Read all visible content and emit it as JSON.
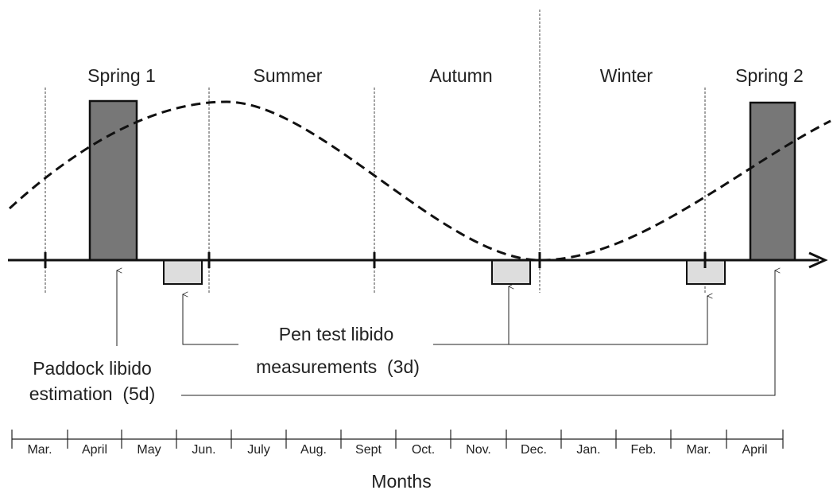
{
  "seasons": [
    "Spring 1",
    "Summer",
    "Autumn",
    "Winter",
    "Spring 2"
  ],
  "annotations": {
    "pen_test": [
      "Pen test libido",
      "measurements  (3d)"
    ],
    "paddock": [
      "Paddock libido",
      "estimation  (5d)"
    ]
  },
  "months": [
    "Mar.",
    "April",
    "May",
    "Jun.",
    "July",
    "Aug.",
    "Sept",
    "Oct.",
    "Nov.",
    "Dec.",
    "Jan.",
    "Feb.",
    "Mar.",
    "April"
  ],
  "x_axis_label": "Months"
}
